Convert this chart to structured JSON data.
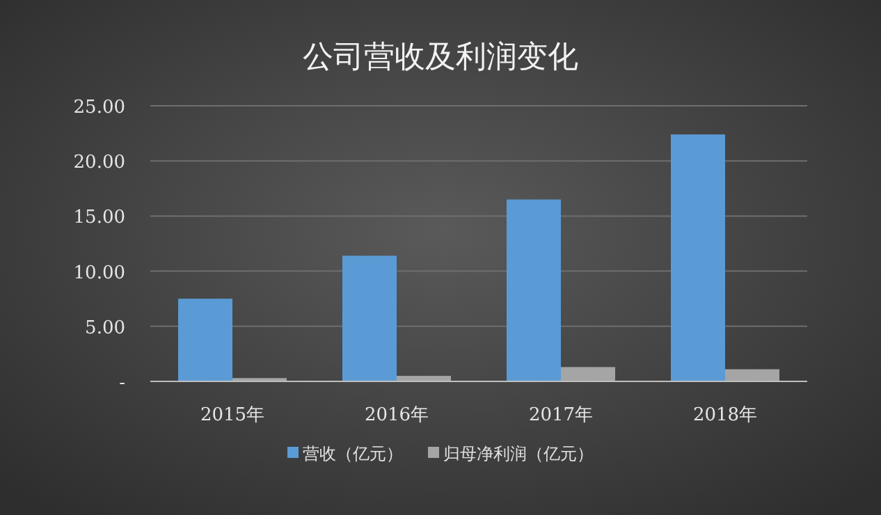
{
  "chart_data": {
    "type": "bar",
    "title": "公司营收及利润变化",
    "categories": [
      "2015年",
      "2016年",
      "2017年",
      "2018年"
    ],
    "series": [
      {
        "name": "营收（亿元）",
        "color": "#5b9bd5",
        "values": [
          7.5,
          11.4,
          16.5,
          22.4
        ]
      },
      {
        "name": "归母净利润（亿元）",
        "color": "#a5a5a5",
        "values": [
          0.3,
          0.5,
          1.3,
          1.1
        ]
      }
    ],
    "ylim": [
      0,
      25
    ],
    "yticks": [
      {
        "value": 0,
        "label": "-"
      },
      {
        "value": 5,
        "label": "5.00"
      },
      {
        "value": 10,
        "label": "10.00"
      },
      {
        "value": 15,
        "label": "15.00"
      },
      {
        "value": 20,
        "label": "20.00"
      },
      {
        "value": 25,
        "label": "25.00"
      }
    ],
    "grid": "y",
    "legend": "bottom"
  }
}
